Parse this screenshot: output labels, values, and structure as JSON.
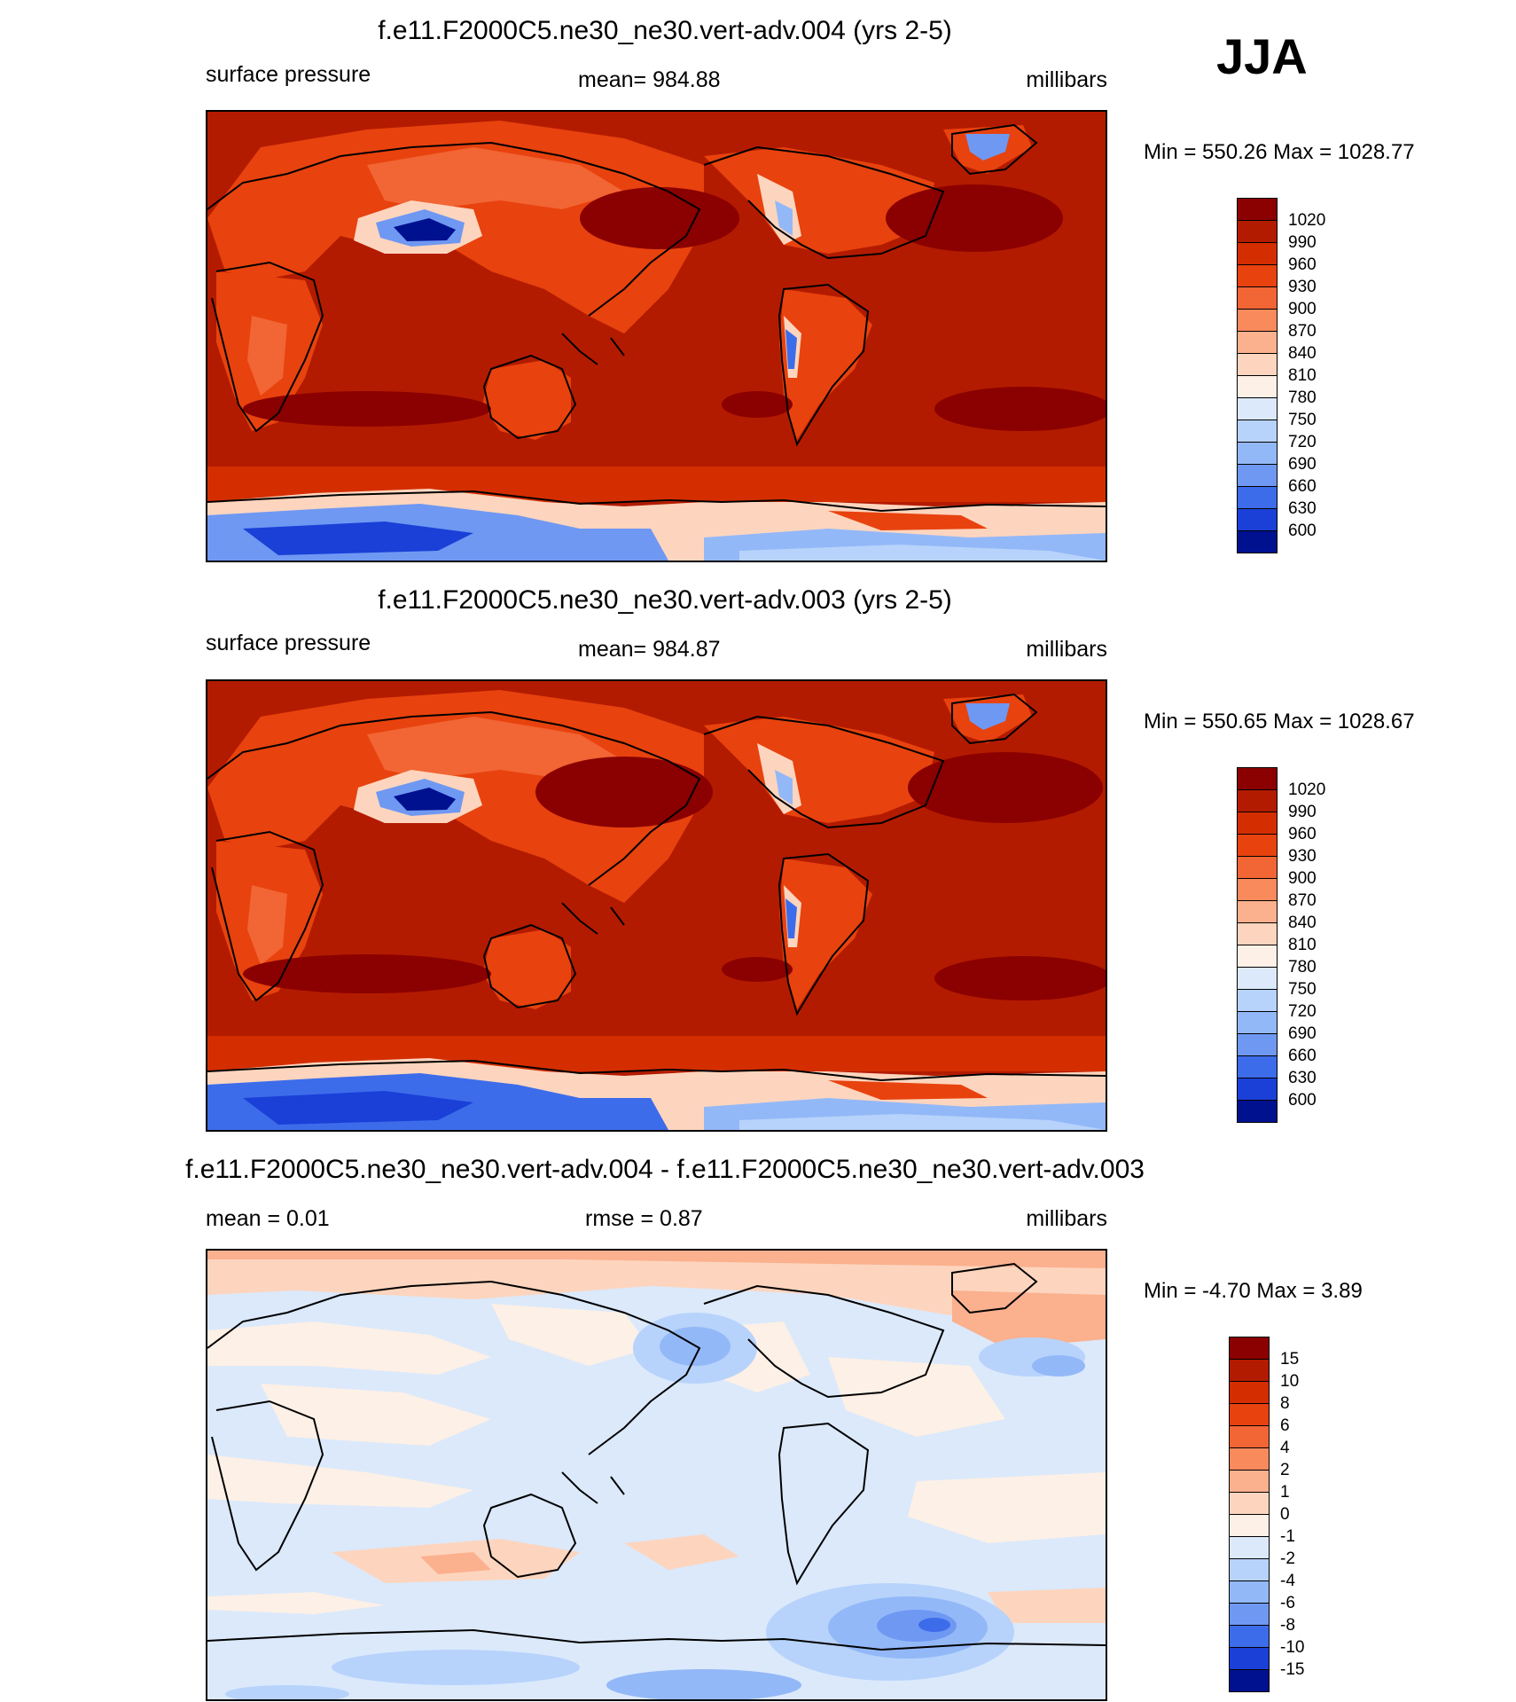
{
  "season": "JJA",
  "panels": [
    {
      "title": "f.e11.F2000C5.ne30_ne30.vert-adv.004 (yrs 2-5)",
      "left_label": "surface pressure",
      "center_label": "mean= 984.88",
      "right_label": "millibars",
      "minmax": "Min = 550.26 Max = 1028.77"
    },
    {
      "title": "f.e11.F2000C5.ne30_ne30.vert-adv.003 (yrs 2-5)",
      "left_label": "surface pressure",
      "center_label": "mean= 984.87",
      "right_label": "millibars",
      "minmax": "Min = 550.65 Max = 1028.67"
    },
    {
      "title": "f.e11.F2000C5.ne30_ne30.vert-adv.004 - f.e11.F2000C5.ne30_ne30.vert-adv.003",
      "left_label": "mean =   0.01",
      "center_label": "rmse =   0.87",
      "right_label": "millibars",
      "minmax": "Min =  -4.70 Max =   3.89"
    }
  ],
  "colorbars": {
    "pressure": {
      "labels": [
        "1020",
        "990",
        "960",
        "930",
        "900",
        "870",
        "840",
        "810",
        "780",
        "750",
        "720",
        "690",
        "660",
        "630",
        "600"
      ],
      "colors": [
        "#8b0000",
        "#b31b00",
        "#d42e00",
        "#e8420e",
        "#f26534",
        "#f88a5c",
        "#fbb08e",
        "#fdd5be",
        "#fdf0e6",
        "#dbe9fb",
        "#b7d3fb",
        "#93b8f8",
        "#6f98f2",
        "#3d6cea",
        "#1a40d8",
        "#00118f"
      ]
    },
    "difference": {
      "labels": [
        "15",
        "10",
        "8",
        "6",
        "4",
        "2",
        "1",
        "0",
        "-1",
        "-2",
        "-4",
        "-6",
        "-8",
        "-10",
        "-15"
      ],
      "colors": [
        "#8b0000",
        "#b31b00",
        "#d42e00",
        "#e8420e",
        "#f26534",
        "#f88a5c",
        "#fbb08e",
        "#fdd5be",
        "#fdf0e6",
        "#dbe9fb",
        "#b7d3fb",
        "#93b8f8",
        "#6f98f2",
        "#3d6cea",
        "#1a40d8",
        "#00118f"
      ]
    }
  },
  "chart_data": [
    {
      "type": "heatmap",
      "title": "f.e11.F2000C5.ne30_ne30.vert-adv.004 (yrs 2-5)",
      "variable": "surface pressure",
      "units": "millibars",
      "mean": 984.88,
      "min": 550.26,
      "max": 1028.77,
      "contour_levels": [
        600,
        630,
        660,
        690,
        720,
        750,
        780,
        810,
        840,
        870,
        900,
        930,
        960,
        990,
        1020
      ],
      "season": "JJA"
    },
    {
      "type": "heatmap",
      "title": "f.e11.F2000C5.ne30_ne30.vert-adv.003 (yrs 2-5)",
      "variable": "surface pressure",
      "units": "millibars",
      "mean": 984.87,
      "min": 550.65,
      "max": 1028.67,
      "contour_levels": [
        600,
        630,
        660,
        690,
        720,
        750,
        780,
        810,
        840,
        870,
        900,
        930,
        960,
        990,
        1020
      ],
      "season": "JJA"
    },
    {
      "type": "heatmap",
      "title": "f.e11.F2000C5.ne30_ne30.vert-adv.004 - f.e11.F2000C5.ne30_ne30.vert-adv.003",
      "units": "millibars",
      "mean": 0.01,
      "rmse": 0.87,
      "min": -4.7,
      "max": 3.89,
      "contour_levels": [
        -15,
        -10,
        -8,
        -6,
        -4,
        -2,
        -1,
        0,
        1,
        2,
        4,
        6,
        8,
        10,
        15
      ],
      "season": "JJA"
    }
  ]
}
